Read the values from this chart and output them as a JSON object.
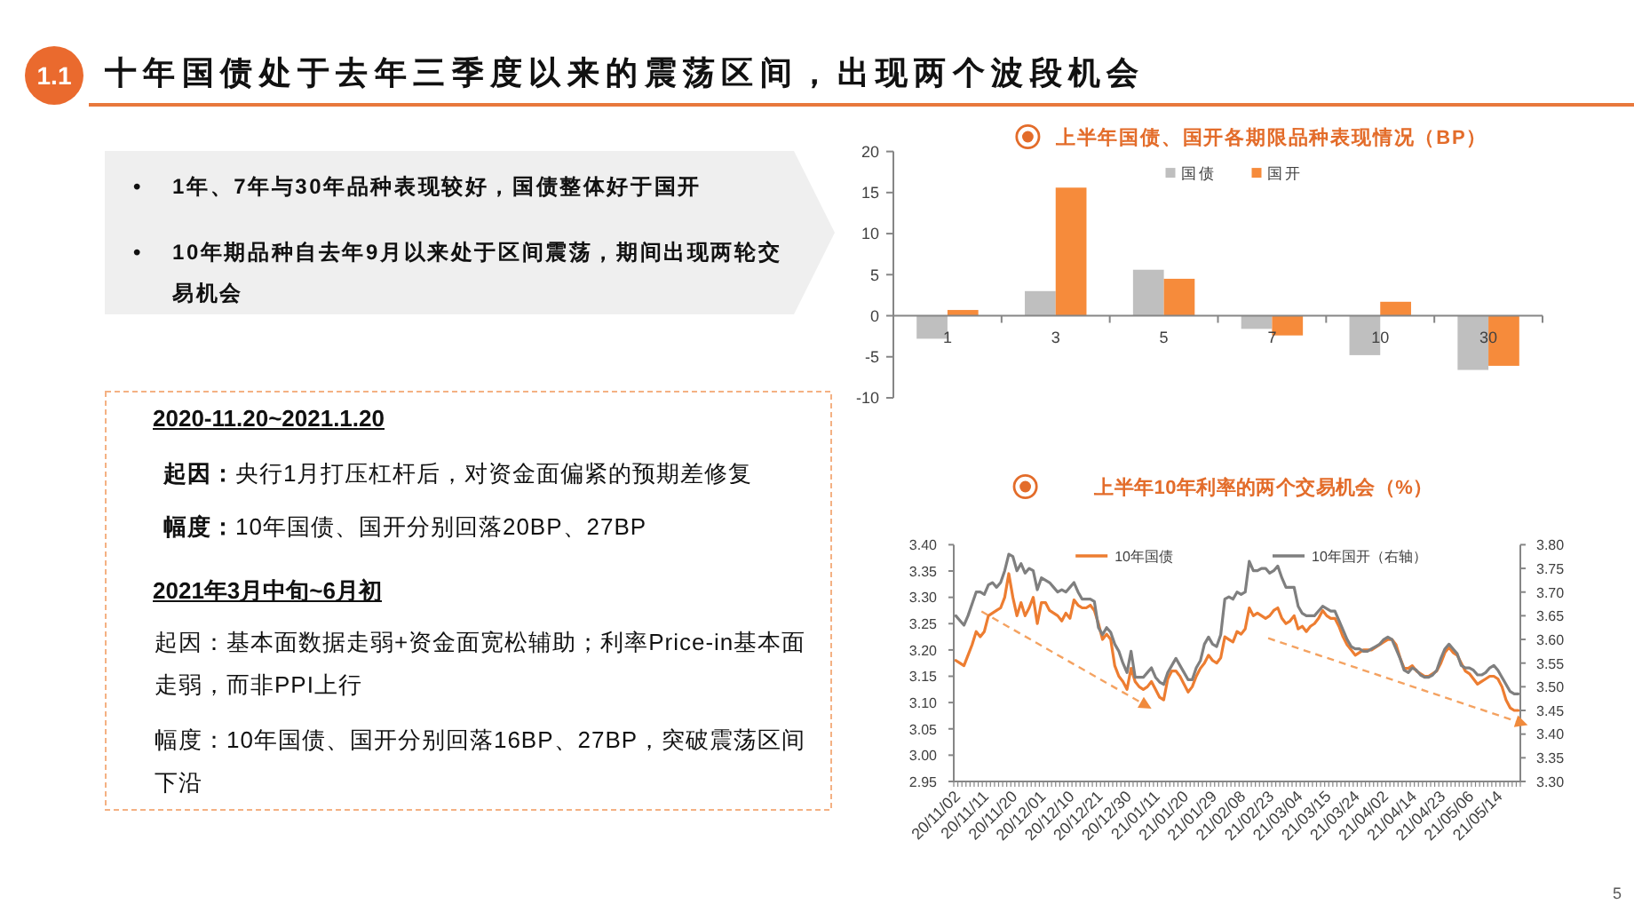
{
  "chart_data": [
    {
      "type": "other",
      "title": "十年国债处于去年三季度以来的震荡区间，出现两个波段机会",
      "annotations": [
        "1.1",
        "•",
        "1年、7年与30年品种表现较好，国债整体好于国开",
        "•",
        "10年期品种自去年9月以来处于区间震荡，期间出现两轮交易机会",
        "2020-11.20~2021.1.20",
        "起因：",
        "央行1月打压杠杆后，对资金面偏紧的预期差修复",
        "幅度：",
        "10年国债、国开分别回落20BP、27BP",
        "2021年3月中旬~6月初",
        "起因：基本面数据走弱+资金面宽松辅助；利率Price-in基本面走弱，而非PPI上行",
        "幅度：10年国债、国开分别回落16BP、27BP，突破震荡区间下沿",
        "5"
      ]
    },
    {
      "type": "bar",
      "title": "上半年国债、国开各期限品种表现情况（BP）",
      "categories": [
        "1",
        "3",
        "5",
        "7",
        "10",
        "30"
      ],
      "series": [
        {
          "name": "国债",
          "color": "#bfbfbf",
          "values": [
            -2.8,
            3.0,
            5.6,
            -1.6,
            -4.8,
            -6.6
          ]
        },
        {
          "name": "国开",
          "color": "#f68b3b",
          "values": [
            0.7,
            15.6,
            4.5,
            -2.4,
            1.7,
            -6.1
          ]
        }
      ],
      "ylim": [
        -10,
        20
      ],
      "yticks": [
        -10,
        -5,
        0,
        5,
        10,
        15,
        20
      ],
      "legend": "top"
    },
    {
      "type": "line",
      "title": "上半年10年利率的两个交易机会（%）",
      "categories": [
        "20/11/02",
        null,
        null,
        null,
        null,
        null,
        null,
        "20/11/11",
        null,
        null,
        null,
        null,
        null,
        null,
        "20/11/20",
        null,
        null,
        null,
        null,
        null,
        null,
        "20/12/01",
        null,
        null,
        null,
        null,
        null,
        null,
        "20/12/10",
        null,
        null,
        null,
        null,
        null,
        null,
        "20/12/21",
        null,
        null,
        null,
        null,
        null,
        null,
        "20/12/30",
        null,
        null,
        null,
        null,
        null,
        null,
        "21/01/11",
        null,
        null,
        null,
        null,
        null,
        null,
        "21/01/20",
        null,
        null,
        null,
        null,
        null,
        null,
        "21/01/29",
        null,
        null,
        null,
        null,
        null,
        null,
        "21/02/08",
        null,
        null,
        null,
        null,
        null,
        null,
        "21/02/23",
        null,
        null,
        null,
        null,
        null,
        null,
        "21/03/04",
        null,
        null,
        null,
        null,
        null,
        null,
        "21/03/15",
        null,
        null,
        null,
        null,
        null,
        null,
        "21/03/24",
        null,
        null,
        null,
        null,
        null,
        null,
        "21/04/02",
        null,
        null,
        null,
        null,
        null,
        null,
        "21/04/14",
        null,
        null,
        null,
        null,
        null,
        null,
        "21/04/23",
        null,
        null,
        null,
        null,
        null,
        null,
        "21/05/06",
        null,
        null,
        null,
        null,
        null,
        null,
        "21/05/14",
        null,
        null,
        null,
        null,
        null
      ],
      "series": [
        {
          "name": "10年国债",
          "color": "#ed7d31",
          "values": [
            3.18,
            3.175,
            3.17,
            3.19,
            3.21,
            3.235,
            3.225,
            3.235,
            3.265,
            3.27,
            3.275,
            3.28,
            3.3,
            3.345,
            3.3,
            3.265,
            3.29,
            3.265,
            3.28,
            3.3,
            3.25,
            3.29,
            3.29,
            3.275,
            3.27,
            3.265,
            3.255,
            3.27,
            3.26,
            3.295,
            3.285,
            3.28,
            3.28,
            3.285,
            3.275,
            3.25,
            3.22,
            3.23,
            3.22,
            3.17,
            3.15,
            3.14,
            3.125,
            3.165,
            3.14,
            3.13,
            3.125,
            3.13,
            3.14,
            3.125,
            3.11,
            3.105,
            3.145,
            3.16,
            3.16,
            3.15,
            3.135,
            3.12,
            3.13,
            3.15,
            3.165,
            3.175,
            3.19,
            3.18,
            3.175,
            3.185,
            3.225,
            3.22,
            3.215,
            3.235,
            3.23,
            3.24,
            3.28,
            3.265,
            3.27,
            3.265,
            3.26,
            3.265,
            3.275,
            3.28,
            3.26,
            3.25,
            3.255,
            3.265,
            3.24,
            3.245,
            3.235,
            3.245,
            3.25,
            3.26,
            3.275,
            3.265,
            3.26,
            3.26,
            3.245,
            3.225,
            3.21,
            3.2,
            3.19,
            3.195,
            3.2,
            3.2,
            3.2,
            3.205,
            3.21,
            3.215,
            3.22,
            3.22,
            3.21,
            3.185,
            3.165,
            3.165,
            3.17,
            3.16,
            3.155,
            3.15,
            3.15,
            3.155,
            3.16,
            3.175,
            3.195,
            3.205,
            3.195,
            3.19,
            3.175,
            3.16,
            3.155,
            3.145,
            3.135,
            3.14,
            3.145,
            3.15,
            3.15,
            3.145,
            3.13,
            3.105,
            3.09,
            3.085,
            3.085
          ]
        },
        {
          "name": "10年国开（右轴）",
          "color": "#7f7f7f",
          "axis": "y2",
          "values": [
            3.65,
            3.64,
            3.63,
            3.65,
            3.675,
            3.7,
            3.7,
            3.695,
            3.715,
            3.72,
            3.71,
            3.72,
            3.745,
            3.78,
            3.775,
            3.745,
            3.76,
            3.74,
            3.75,
            3.745,
            3.705,
            3.73,
            3.725,
            3.72,
            3.71,
            3.7,
            3.705,
            3.7,
            3.71,
            3.72,
            3.7,
            3.685,
            3.685,
            3.685,
            3.68,
            3.625,
            3.61,
            3.625,
            3.615,
            3.59,
            3.575,
            3.55,
            3.53,
            3.575,
            3.52,
            3.52,
            3.52,
            3.53,
            3.54,
            3.52,
            3.51,
            3.505,
            3.53,
            3.545,
            3.56,
            3.545,
            3.53,
            3.515,
            3.515,
            3.54,
            3.555,
            3.59,
            3.605,
            3.59,
            3.585,
            3.61,
            3.685,
            3.69,
            3.685,
            3.7,
            3.695,
            3.7,
            3.765,
            3.745,
            3.745,
            3.75,
            3.75,
            3.74,
            3.745,
            3.755,
            3.73,
            3.71,
            3.71,
            3.71,
            3.67,
            3.655,
            3.65,
            3.65,
            3.65,
            3.66,
            3.67,
            3.665,
            3.66,
            3.66,
            3.64,
            3.62,
            3.6,
            3.585,
            3.58,
            3.58,
            3.575,
            3.575,
            3.58,
            3.585,
            3.59,
            3.6,
            3.605,
            3.6,
            3.58,
            3.56,
            3.535,
            3.53,
            3.54,
            3.535,
            3.525,
            3.52,
            3.52,
            3.525,
            3.535,
            3.56,
            3.58,
            3.59,
            3.58,
            3.57,
            3.545,
            3.54,
            3.54,
            3.535,
            3.525,
            3.525,
            3.53,
            3.54,
            3.545,
            3.535,
            3.52,
            3.505,
            3.49,
            3.485,
            3.485
          ]
        }
      ],
      "ylim": [
        2.95,
        3.4
      ],
      "yticks": [
        2.95,
        {
          "value": 3,
          "label": "3.00"
        },
        3.05,
        {
          "value": 3.1,
          "label": "3.10"
        },
        3.15,
        {
          "value": 3.2,
          "label": "3.20"
        },
        3.25,
        {
          "value": 3.3,
          "label": "3.30"
        },
        3.35,
        {
          "value": 3.4,
          "label": "3.40"
        }
      ],
      "y2lim": [
        3.3,
        3.8
      ],
      "y2ticks": [
        {
          "value": 3.3,
          "label": "3.30"
        },
        3.35,
        {
          "value": 3.4,
          "label": "3.40"
        },
        3.45,
        {
          "value": 3.5,
          "label": "3.50"
        },
        3.55,
        {
          "value": 3.6,
          "label": "3.60"
        },
        3.65,
        {
          "value": 3.7,
          "label": "3.70"
        },
        3.75,
        {
          "value": 3.8,
          "label": "3.80"
        }
      ],
      "legend": "top"
    }
  ]
}
